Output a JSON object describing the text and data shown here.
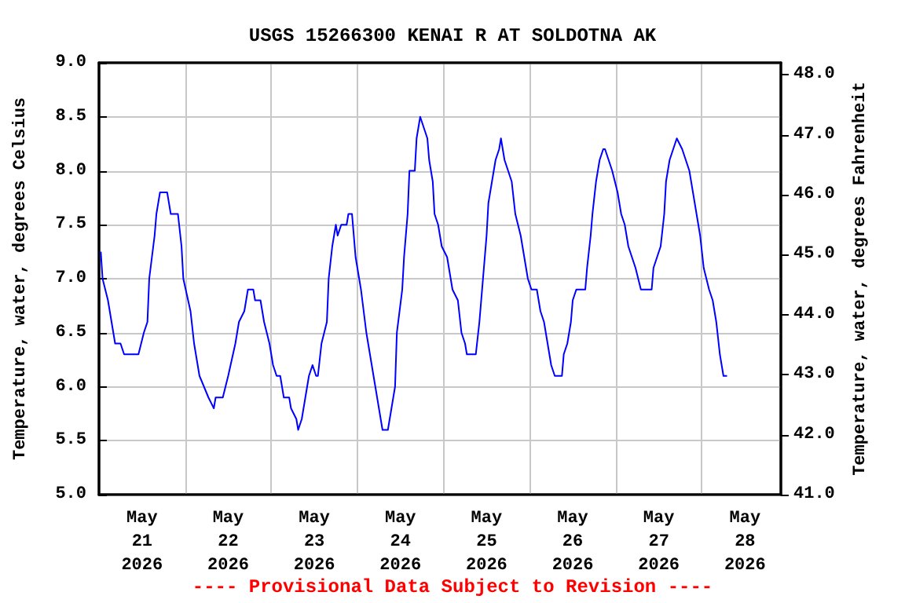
{
  "chart_data": {
    "type": "line",
    "title": "USGS 15266300 KENAI R AT SOLDOTNA AK",
    "ylabel": "Temperature, water, degrees Celsius",
    "y2label": "Temperature, water, degrees Fahrenheit",
    "annotations": [
      "---- Provisional Data Subject to Revision ----"
    ],
    "xlim": [
      "2026-05-21T00:00",
      "2026-05-28T22:00"
    ],
    "xticks": [
      {
        "value": "2026-05-21T12:00",
        "label": "May\n21\n2026"
      },
      {
        "value": "2026-05-22T00:00",
        "label": null
      },
      {
        "value": "2026-05-22T12:00",
        "label": "May\n22\n2026"
      },
      {
        "value": "2026-05-23T00:00",
        "label": null
      },
      {
        "value": "2026-05-23T12:00",
        "label": "May\n23\n2026"
      },
      {
        "value": "2026-05-24T00:00",
        "label": null
      },
      {
        "value": "2026-05-24T12:00",
        "label": "May\n24\n2026"
      },
      {
        "value": "2026-05-25T00:00",
        "label": null
      },
      {
        "value": "2026-05-25T12:00",
        "label": "May\n25\n2026"
      },
      {
        "value": "2026-05-26T00:00",
        "label": null
      },
      {
        "value": "2026-05-26T12:00",
        "label": "May\n26\n2026"
      },
      {
        "value": "2026-05-27T00:00",
        "label": null
      },
      {
        "value": "2026-05-27T12:00",
        "label": "May\n27\n2026"
      },
      {
        "value": "2026-05-28T00:00",
        "label": null
      },
      {
        "value": "2026-05-28T12:00",
        "label": "May\n28\n2026"
      }
    ],
    "ylim": [
      5,
      9
    ],
    "yticks": [
      {
        "value": 5,
        "label": "5.0"
      },
      {
        "value": 5.5,
        "label": "5.5"
      },
      {
        "value": 6,
        "label": "6.0"
      },
      {
        "value": 6.5,
        "label": "6.5"
      },
      {
        "value": 7,
        "label": "7.0"
      },
      {
        "value": 7.5,
        "label": "7.5"
      },
      {
        "value": 8,
        "label": "8.0"
      },
      {
        "value": 8.5,
        "label": "8.5"
      },
      {
        "value": 9,
        "label": "9.0"
      }
    ],
    "y2lim": [
      41,
      48.2
    ],
    "y2ticks": [
      {
        "value": 41,
        "label": "41.0"
      },
      {
        "value": 42,
        "label": "42.0"
      },
      {
        "value": 43,
        "label": "43.0"
      },
      {
        "value": 44,
        "label": "44.0"
      },
      {
        "value": 45,
        "label": "45.0"
      },
      {
        "value": 46,
        "label": "46.0"
      },
      {
        "value": 47,
        "label": "47.0"
      },
      {
        "value": 48,
        "label": "48.0"
      }
    ],
    "grid": true,
    "marker": "none",
    "line_style": "solid",
    "series": [
      {
        "color": "#0000ff",
        "x": [
          "2026-05-21T00:30",
          "2026-05-21T01:00",
          "2026-05-21T02:30",
          "2026-05-21T03:30",
          "2026-05-21T04:30",
          "2026-05-21T06:00",
          "2026-05-21T07:00",
          "2026-05-21T11:00",
          "2026-05-21T12:30",
          "2026-05-21T13:30",
          "2026-05-21T14:00",
          "2026-05-21T15:30",
          "2026-05-21T16:00",
          "2026-05-21T17:00",
          "2026-05-21T19:00",
          "2026-05-21T20:00",
          "2026-05-21T22:00",
          "2026-05-21T23:00",
          "2026-05-21T23:30",
          "2026-05-22T01:30",
          "2026-05-22T02:30",
          "2026-05-22T04:00",
          "2026-05-22T06:30",
          "2026-05-22T08:00",
          "2026-05-22T08:30",
          "2026-05-22T10:30",
          "2026-05-22T12:00",
          "2026-05-22T14:00",
          "2026-05-22T15:00",
          "2026-05-22T16:30",
          "2026-05-22T17:30",
          "2026-05-22T19:00",
          "2026-05-22T19:30",
          "2026-05-22T21:00",
          "2026-05-22T22:00",
          "2026-05-22T23:30",
          "2026-05-23T00:30",
          "2026-05-23T01:30",
          "2026-05-23T02:30",
          "2026-05-23T03:30",
          "2026-05-23T05:00",
          "2026-05-23T05:30",
          "2026-05-23T07:00",
          "2026-05-23T07:30",
          "2026-05-23T08:30",
          "2026-05-23T09:30",
          "2026-05-23T10:30",
          "2026-05-23T11:30",
          "2026-05-23T12:30",
          "2026-05-23T13:00",
          "2026-05-23T14:00",
          "2026-05-23T15:30",
          "2026-05-23T16:00",
          "2026-05-23T17:00",
          "2026-05-23T18:00",
          "2026-05-23T18:30",
          "2026-05-23T19:30",
          "2026-05-23T21:00",
          "2026-05-23T21:30",
          "2026-05-23T22:30",
          "2026-05-23T23:30",
          "2026-05-24T01:00",
          "2026-05-24T02:30",
          "2026-05-24T03:30",
          "2026-05-24T05:00",
          "2026-05-24T06:00",
          "2026-05-24T07:00",
          "2026-05-24T08:30",
          "2026-05-24T09:30",
          "2026-05-24T10:30",
          "2026-05-24T11:00",
          "2026-05-24T12:30",
          "2026-05-24T13:00",
          "2026-05-24T14:00",
          "2026-05-24T14:30",
          "2026-05-24T16:00",
          "2026-05-24T16:30",
          "2026-05-24T17:30",
          "2026-05-24T18:30",
          "2026-05-24T19:30",
          "2026-05-24T20:00",
          "2026-05-24T21:00",
          "2026-05-24T21:30",
          "2026-05-24T22:30",
          "2026-05-24T23:30",
          "2026-05-25T01:00",
          "2026-05-25T02:30",
          "2026-05-25T04:00",
          "2026-05-25T05:00",
          "2026-05-25T06:00",
          "2026-05-25T06:30",
          "2026-05-25T09:00",
          "2026-05-25T10:00",
          "2026-05-25T11:00",
          "2026-05-25T12:00",
          "2026-05-25T12:30",
          "2026-05-25T13:30",
          "2026-05-25T14:30",
          "2026-05-25T15:30",
          "2026-05-25T16:00",
          "2026-05-25T17:00",
          "2026-05-25T18:00",
          "2026-05-25T19:00",
          "2026-05-25T20:00",
          "2026-05-25T21:30",
          "2026-05-25T22:30",
          "2026-05-25T23:30",
          "2026-05-26T00:30",
          "2026-05-26T02:00",
          "2026-05-26T03:00",
          "2026-05-26T04:00",
          "2026-05-26T05:00",
          "2026-05-26T06:00",
          "2026-05-26T07:00",
          "2026-05-26T09:00",
          "2026-05-26T09:30",
          "2026-05-26T10:30",
          "2026-05-26T11:30",
          "2026-05-26T12:00",
          "2026-05-26T13:00",
          "2026-05-26T15:30",
          "2026-05-26T16:00",
          "2026-05-26T17:00",
          "2026-05-26T17:30",
          "2026-05-26T18:30",
          "2026-05-26T19:30",
          "2026-05-26T20:30",
          "2026-05-26T21:00",
          "2026-05-26T22:00",
          "2026-05-26T23:00",
          "2026-05-27T00:30",
          "2026-05-27T01:30",
          "2026-05-27T02:30",
          "2026-05-27T03:30",
          "2026-05-27T04:30",
          "2026-05-27T05:30",
          "2026-05-27T07:00",
          "2026-05-27T10:00",
          "2026-05-27T10:30",
          "2026-05-27T11:30",
          "2026-05-27T12:30",
          "2026-05-27T13:30",
          "2026-05-27T14:00",
          "2026-05-27T15:00",
          "2026-05-27T16:00",
          "2026-05-27T17:00",
          "2026-05-27T18:30",
          "2026-05-27T19:30",
          "2026-05-27T20:30",
          "2026-05-27T21:30",
          "2026-05-27T22:30",
          "2026-05-27T23:30",
          "2026-05-28T00:30",
          "2026-05-28T02:00",
          "2026-05-28T03:00",
          "2026-05-28T04:00",
          "2026-05-28T05:00",
          "2026-05-28T06:00",
          "2026-05-28T07:00"
        ],
        "values": [
          7.25,
          7.0,
          6.8,
          6.6,
          6.4,
          6.4,
          6.3,
          6.3,
          6.5,
          6.6,
          7.0,
          7.4,
          7.6,
          7.8,
          7.8,
          7.6,
          7.6,
          7.3,
          7.0,
          6.7,
          6.4,
          6.1,
          5.9,
          5.8,
          5.9,
          5.9,
          6.1,
          6.4,
          6.6,
          6.7,
          6.9,
          6.9,
          6.8,
          6.8,
          6.6,
          6.4,
          6.2,
          6.1,
          6.1,
          5.9,
          5.9,
          5.8,
          5.7,
          5.6,
          5.7,
          5.9,
          6.1,
          6.2,
          6.1,
          6.1,
          6.4,
          6.6,
          7.0,
          7.3,
          7.5,
          7.4,
          7.5,
          7.5,
          7.6,
          7.6,
          7.2,
          6.9,
          6.5,
          6.3,
          6.0,
          5.8,
          5.6,
          5.6,
          5.8,
          6.0,
          6.5,
          6.9,
          7.2,
          7.6,
          8.0,
          8.0,
          8.3,
          8.5,
          8.4,
          8.3,
          8.1,
          7.9,
          7.6,
          7.5,
          7.3,
          7.2,
          6.9,
          6.8,
          6.5,
          6.4,
          6.3,
          6.3,
          6.6,
          7.0,
          7.4,
          7.7,
          7.9,
          8.1,
          8.2,
          8.3,
          8.1,
          8.0,
          7.9,
          7.6,
          7.4,
          7.2,
          7.0,
          6.9,
          6.9,
          6.7,
          6.6,
          6.4,
          6.2,
          6.1,
          6.1,
          6.3,
          6.4,
          6.6,
          6.8,
          6.9,
          6.9,
          7.1,
          7.4,
          7.6,
          7.9,
          8.1,
          8.2,
          8.2,
          8.1,
          8.0,
          7.8,
          7.6,
          7.5,
          7.3,
          7.2,
          7.1,
          6.9,
          6.9,
          7.1,
          7.2,
          7.3,
          7.6,
          7.9,
          8.1,
          8.2,
          8.3,
          8.2,
          8.1,
          8.0,
          7.8,
          7.6,
          7.4,
          7.1,
          6.9,
          6.8,
          6.6,
          6.3,
          6.1,
          6.1
        ]
      }
    ]
  }
}
